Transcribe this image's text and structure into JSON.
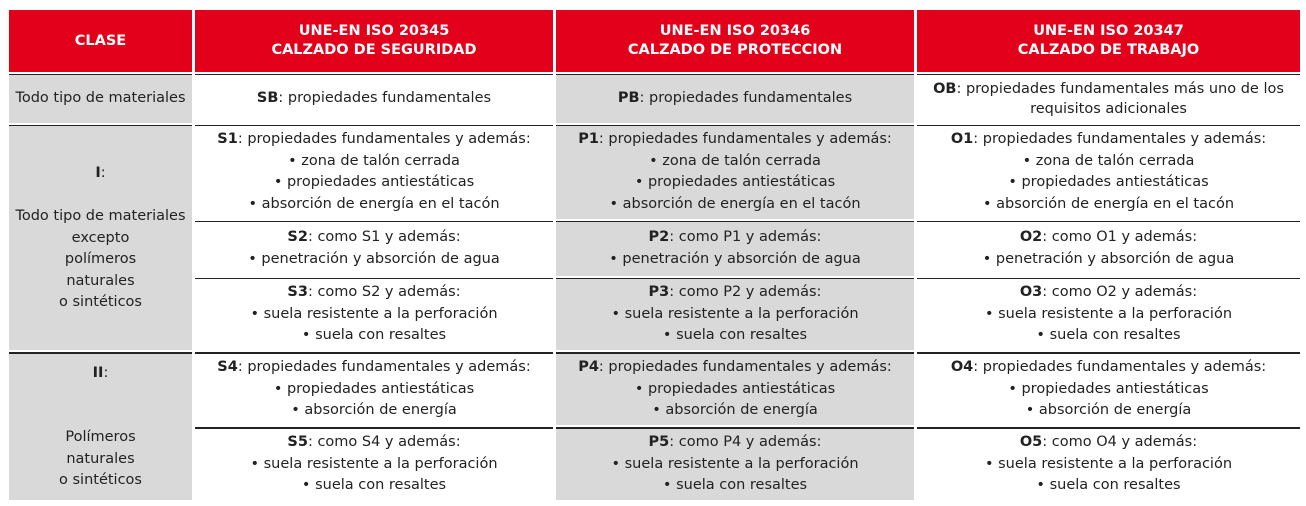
{
  "header": {
    "clase": "CLASE",
    "col1": [
      "UNE-EN ISO 20345",
      "CALZADO DE SEGURIDAD"
    ],
    "col2": [
      "UNE-EN ISO 20346",
      "CALZADO DE PROTECCION"
    ],
    "col3": [
      "UNE-EN ISO 20347",
      "CALZADO DE TRABAJO"
    ]
  },
  "row_all": {
    "label": "Todo tipo de materiales",
    "c1": {
      "code": "SB",
      "text": ": propiedades fundamentales"
    },
    "c2": {
      "code": "PB",
      "text": ": propiedades fundamentales"
    },
    "c3": {
      "code": "OB",
      "text": ": propiedades fundamentales más uno de los requisitos adicionales"
    }
  },
  "class1": {
    "roman": "I",
    "colon": ":",
    "desc": [
      "Todo tipo de materiales",
      "excepto",
      "polímeros",
      "naturales",
      "o sintéticos"
    ],
    "rows": [
      {
        "c1": {
          "code": "S1",
          "text": ": propiedades fundamentales y además:"
        },
        "c2": {
          "code": "P1",
          "text": ": propiedades fundamentales y además:"
        },
        "c3": {
          "code": "O1",
          "text": ": propiedades fundamentales y además:"
        },
        "bullets": [
          "• zona de talón cerrada",
          "• propiedades antiestáticas",
          "• absorción de energía en el tacón"
        ]
      },
      {
        "c1": {
          "code": "S2",
          "text": ": como S1 y además:"
        },
        "c2": {
          "code": "P2",
          "text": ": como P1 y además:"
        },
        "c3": {
          "code": "O2",
          "text": ": como O1 y además:"
        },
        "bullets": [
          "• penetración y absorción de agua"
        ]
      },
      {
        "c1": {
          "code": "S3",
          "text": ": como S2 y además:"
        },
        "c2": {
          "code": "P3",
          "text": ": como P2 y además:"
        },
        "c3": {
          "code": "O3",
          "text": ": como O2 y además:"
        },
        "bullets": [
          "• suela resistente a la perforación",
          "• suela con resaltes"
        ]
      }
    ]
  },
  "class2": {
    "roman": "II",
    "colon": ":",
    "desc": [
      "Polímeros",
      "naturales",
      "o sintéticos"
    ],
    "rows": [
      {
        "c1": {
          "code": "S4",
          "text": ": propiedades fundamentales y además:"
        },
        "c2": {
          "code": "P4",
          "text": ": propiedades fundamentales y además:"
        },
        "c3": {
          "code": "O4",
          "text": ": propiedades fundamentales y además:"
        },
        "bullets": [
          "• propiedades antiestáticas",
          "• absorción de energía"
        ]
      },
      {
        "c1": {
          "code": "S5",
          "text": ": como S4 y además:"
        },
        "c2": {
          "code": "P5",
          "text": ": como P4 y además:"
        },
        "c3": {
          "code": "O5",
          "text": ": como O4 y además:"
        },
        "bullets": [
          "• suela resistente a la perforación",
          "• suela con resaltes"
        ]
      }
    ]
  },
  "colors": {
    "header_red": "#e3001b",
    "grey_fill": "#d9d9d9",
    "white_fill": "#ffffff"
  }
}
